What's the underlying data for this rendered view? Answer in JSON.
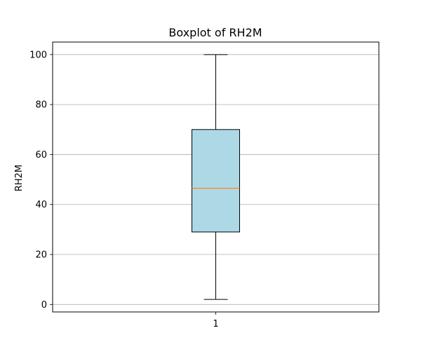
{
  "chart_data": {
    "type": "box",
    "title": "Boxplot of RH2M",
    "xlabel": "",
    "ylabel": "RH2M",
    "categories": [
      "1"
    ],
    "box": {
      "whisker_low": 2,
      "q1": 29,
      "median": 46.5,
      "q3": 70,
      "whisker_high": 100
    },
    "ylim": [
      -3,
      105
    ],
    "yticks": [
      0,
      20,
      40,
      60,
      80,
      100
    ],
    "grid": "y-axis",
    "colors": {
      "box_fill": "#add8e6",
      "median": "#ff7f0e",
      "grid": "#b0b0b0",
      "line": "#000000"
    }
  }
}
